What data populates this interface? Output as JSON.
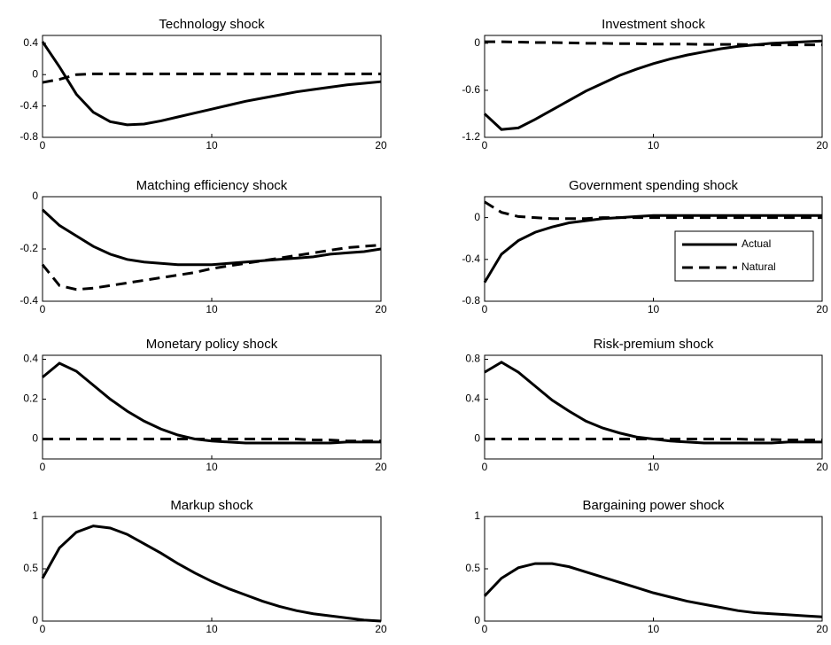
{
  "chart_data": [
    {
      "type": "line",
      "title": "Technology shock",
      "x": [
        0,
        1,
        2,
        3,
        4,
        5,
        6,
        7,
        8,
        9,
        10,
        11,
        12,
        13,
        14,
        15,
        16,
        17,
        18,
        19,
        20
      ],
      "series": [
        {
          "name": "Actual",
          "color": "#000000",
          "linestyle": "solid",
          "values": [
            0.42,
            0.1,
            -0.25,
            -0.48,
            -0.6,
            -0.64,
            -0.63,
            -0.59,
            -0.54,
            -0.49,
            -0.44,
            -0.39,
            -0.34,
            -0.3,
            -0.26,
            -0.22,
            -0.19,
            -0.16,
            -0.13,
            -0.11,
            -0.09
          ]
        },
        {
          "name": "Natural",
          "color": "#000000",
          "linestyle": "dashed",
          "values": [
            -0.1,
            -0.06,
            0,
            0.01,
            0.01,
            0.01,
            0.01,
            0.01,
            0.01,
            0.01,
            0.01,
            0.01,
            0.01,
            0.01,
            0.01,
            0.01,
            0.01,
            0.01,
            0.01,
            0.01,
            0.01
          ]
        }
      ],
      "xlim": [
        0,
        20
      ],
      "xticks": [
        0,
        10,
        20
      ],
      "ylim": [
        -0.8,
        0.5
      ],
      "yticks": [
        -0.8,
        -0.4,
        0,
        0.4
      ]
    },
    {
      "type": "line",
      "title": "Investment shock",
      "x": [
        0,
        1,
        2,
        3,
        4,
        5,
        6,
        7,
        8,
        9,
        10,
        11,
        12,
        13,
        14,
        15,
        16,
        17,
        18,
        19,
        20
      ],
      "series": [
        {
          "name": "Actual",
          "color": "#000000",
          "linestyle": "solid",
          "values": [
            -0.9,
            -1.1,
            -1.08,
            -0.97,
            -0.85,
            -0.73,
            -0.61,
            -0.51,
            -0.41,
            -0.33,
            -0.26,
            -0.2,
            -0.15,
            -0.11,
            -0.07,
            -0.04,
            -0.02,
            0,
            0.01,
            0.02,
            0.03
          ]
        },
        {
          "name": "Natural",
          "color": "#000000",
          "linestyle": "dashed",
          "values": [
            0.02,
            0.02,
            0.015,
            0.01,
            0.01,
            0.005,
            0,
            0,
            -0.005,
            -0.005,
            -0.01,
            -0.01,
            -0.01,
            -0.015,
            -0.015,
            -0.015,
            -0.02,
            -0.02,
            -0.02,
            -0.02,
            -0.02
          ]
        }
      ],
      "xlim": [
        0,
        20
      ],
      "xticks": [
        0,
        10,
        20
      ],
      "ylim": [
        -1.2,
        0.1
      ],
      "yticks": [
        -1.2,
        -0.6,
        0
      ]
    },
    {
      "type": "line",
      "title": "Matching efficiency shock",
      "x": [
        0,
        1,
        2,
        3,
        4,
        5,
        6,
        7,
        8,
        9,
        10,
        11,
        12,
        13,
        14,
        15,
        16,
        17,
        18,
        19,
        20
      ],
      "series": [
        {
          "name": "Actual",
          "color": "#000000",
          "linestyle": "solid",
          "values": [
            -0.05,
            -0.11,
            -0.15,
            -0.19,
            -0.22,
            -0.24,
            -0.25,
            -0.255,
            -0.26,
            -0.26,
            -0.26,
            -0.255,
            -0.25,
            -0.245,
            -0.24,
            -0.235,
            -0.23,
            -0.22,
            -0.215,
            -0.21,
            -0.2
          ]
        },
        {
          "name": "Natural",
          "color": "#000000",
          "linestyle": "dashed",
          "values": [
            -0.26,
            -0.34,
            -0.355,
            -0.35,
            -0.34,
            -0.33,
            -0.32,
            -0.31,
            -0.3,
            -0.29,
            -0.275,
            -0.265,
            -0.255,
            -0.245,
            -0.235,
            -0.225,
            -0.215,
            -0.205,
            -0.195,
            -0.19,
            -0.185
          ]
        }
      ],
      "xlim": [
        0,
        20
      ],
      "xticks": [
        0,
        10,
        20
      ],
      "ylim": [
        -0.4,
        0
      ],
      "yticks": [
        -0.4,
        -0.2,
        0
      ]
    },
    {
      "type": "line",
      "title": "Government spending shock",
      "x": [
        0,
        1,
        2,
        3,
        4,
        5,
        6,
        7,
        8,
        9,
        10,
        11,
        12,
        13,
        14,
        15,
        16,
        17,
        18,
        19,
        20
      ],
      "series": [
        {
          "name": "Actual",
          "color": "#000000",
          "linestyle": "solid",
          "values": [
            -0.62,
            -0.35,
            -0.22,
            -0.14,
            -0.09,
            -0.05,
            -0.03,
            -0.01,
            0,
            0.01,
            0.02,
            0.02,
            0.02,
            0.02,
            0.02,
            0.02,
            0.02,
            0.02,
            0.02,
            0.02,
            0.02
          ]
        },
        {
          "name": "Natural",
          "color": "#000000",
          "linestyle": "dashed",
          "values": [
            0.15,
            0.05,
            0.01,
            0,
            -0.01,
            -0.01,
            -0.01,
            0,
            0,
            0,
            0,
            0,
            0,
            0,
            0,
            0,
            0,
            0,
            0,
            0,
            0
          ]
        }
      ],
      "xlim": [
        0,
        20
      ],
      "xticks": [
        0,
        10,
        20
      ],
      "ylim": [
        -0.8,
        0.2
      ],
      "yticks": [
        -0.8,
        -0.4,
        0
      ],
      "legend": "right"
    },
    {
      "type": "line",
      "title": "Monetary policy shock",
      "x": [
        0,
        1,
        2,
        3,
        4,
        5,
        6,
        7,
        8,
        9,
        10,
        11,
        12,
        13,
        14,
        15,
        16,
        17,
        18,
        19,
        20
      ],
      "series": [
        {
          "name": "Actual",
          "color": "#000000",
          "linestyle": "solid",
          "values": [
            0.31,
            0.38,
            0.34,
            0.27,
            0.2,
            0.14,
            0.09,
            0.05,
            0.02,
            0,
            -0.01,
            -0.015,
            -0.02,
            -0.02,
            -0.02,
            -0.02,
            -0.02,
            -0.02,
            -0.015,
            -0.015,
            -0.015
          ]
        },
        {
          "name": "Natural",
          "color": "#000000",
          "linestyle": "dashed",
          "values": [
            0,
            0,
            0,
            0,
            0,
            0,
            0,
            0,
            0,
            0,
            0,
            0,
            0,
            0,
            0,
            0,
            -0.005,
            -0.005,
            -0.01,
            -0.01,
            -0.01
          ]
        }
      ],
      "xlim": [
        0,
        20
      ],
      "xticks": [
        0,
        10,
        20
      ],
      "ylim": [
        -0.1,
        0.42
      ],
      "yticks": [
        0,
        0.2,
        0.4
      ]
    },
    {
      "type": "line",
      "title": "Risk-premium shock",
      "x": [
        0,
        1,
        2,
        3,
        4,
        5,
        6,
        7,
        8,
        9,
        10,
        11,
        12,
        13,
        14,
        15,
        16,
        17,
        18,
        19,
        20
      ],
      "series": [
        {
          "name": "Actual",
          "color": "#000000",
          "linestyle": "solid",
          "values": [
            0.67,
            0.77,
            0.67,
            0.53,
            0.39,
            0.28,
            0.18,
            0.11,
            0.06,
            0.02,
            0,
            -0.02,
            -0.03,
            -0.04,
            -0.04,
            -0.04,
            -0.04,
            -0.04,
            -0.03,
            -0.03,
            -0.03
          ]
        },
        {
          "name": "Natural",
          "color": "#000000",
          "linestyle": "dashed",
          "values": [
            0,
            0,
            0,
            0,
            0,
            0,
            0,
            0,
            0,
            0,
            0,
            0,
            0,
            0,
            0,
            0,
            -0.005,
            -0.005,
            -0.01,
            -0.01,
            -0.01
          ]
        }
      ],
      "xlim": [
        0,
        20
      ],
      "xticks": [
        0,
        10,
        20
      ],
      "ylim": [
        -0.2,
        0.84
      ],
      "yticks": [
        0,
        0.4,
        0.8
      ]
    },
    {
      "type": "line",
      "title": "Markup shock",
      "x": [
        0,
        1,
        2,
        3,
        4,
        5,
        6,
        7,
        8,
        9,
        10,
        11,
        12,
        13,
        14,
        15,
        16,
        17,
        18,
        19,
        20
      ],
      "series": [
        {
          "name": "Actual",
          "color": "#000000",
          "linestyle": "solid",
          "values": [
            0.41,
            0.7,
            0.85,
            0.91,
            0.89,
            0.83,
            0.74,
            0.65,
            0.55,
            0.46,
            0.38,
            0.31,
            0.25,
            0.19,
            0.14,
            0.1,
            0.07,
            0.05,
            0.03,
            0.01,
            0
          ]
        }
      ],
      "xlim": [
        0,
        20
      ],
      "xticks": [
        0,
        10,
        20
      ],
      "ylim": [
        0,
        1
      ],
      "yticks": [
        0,
        0.5,
        1
      ]
    },
    {
      "type": "line",
      "title": "Bargaining power shock",
      "x": [
        0,
        1,
        2,
        3,
        4,
        5,
        6,
        7,
        8,
        9,
        10,
        11,
        12,
        13,
        14,
        15,
        16,
        17,
        18,
        19,
        20
      ],
      "series": [
        {
          "name": "Actual",
          "color": "#000000",
          "linestyle": "solid",
          "values": [
            0.24,
            0.41,
            0.51,
            0.55,
            0.55,
            0.52,
            0.47,
            0.42,
            0.37,
            0.32,
            0.27,
            0.23,
            0.19,
            0.16,
            0.13,
            0.1,
            0.08,
            0.07,
            0.06,
            0.05,
            0.04
          ]
        }
      ],
      "xlim": [
        0,
        20
      ],
      "xticks": [
        0,
        10,
        20
      ],
      "ylim": [
        0,
        1
      ],
      "yticks": [
        0,
        0.5,
        1
      ]
    }
  ]
}
